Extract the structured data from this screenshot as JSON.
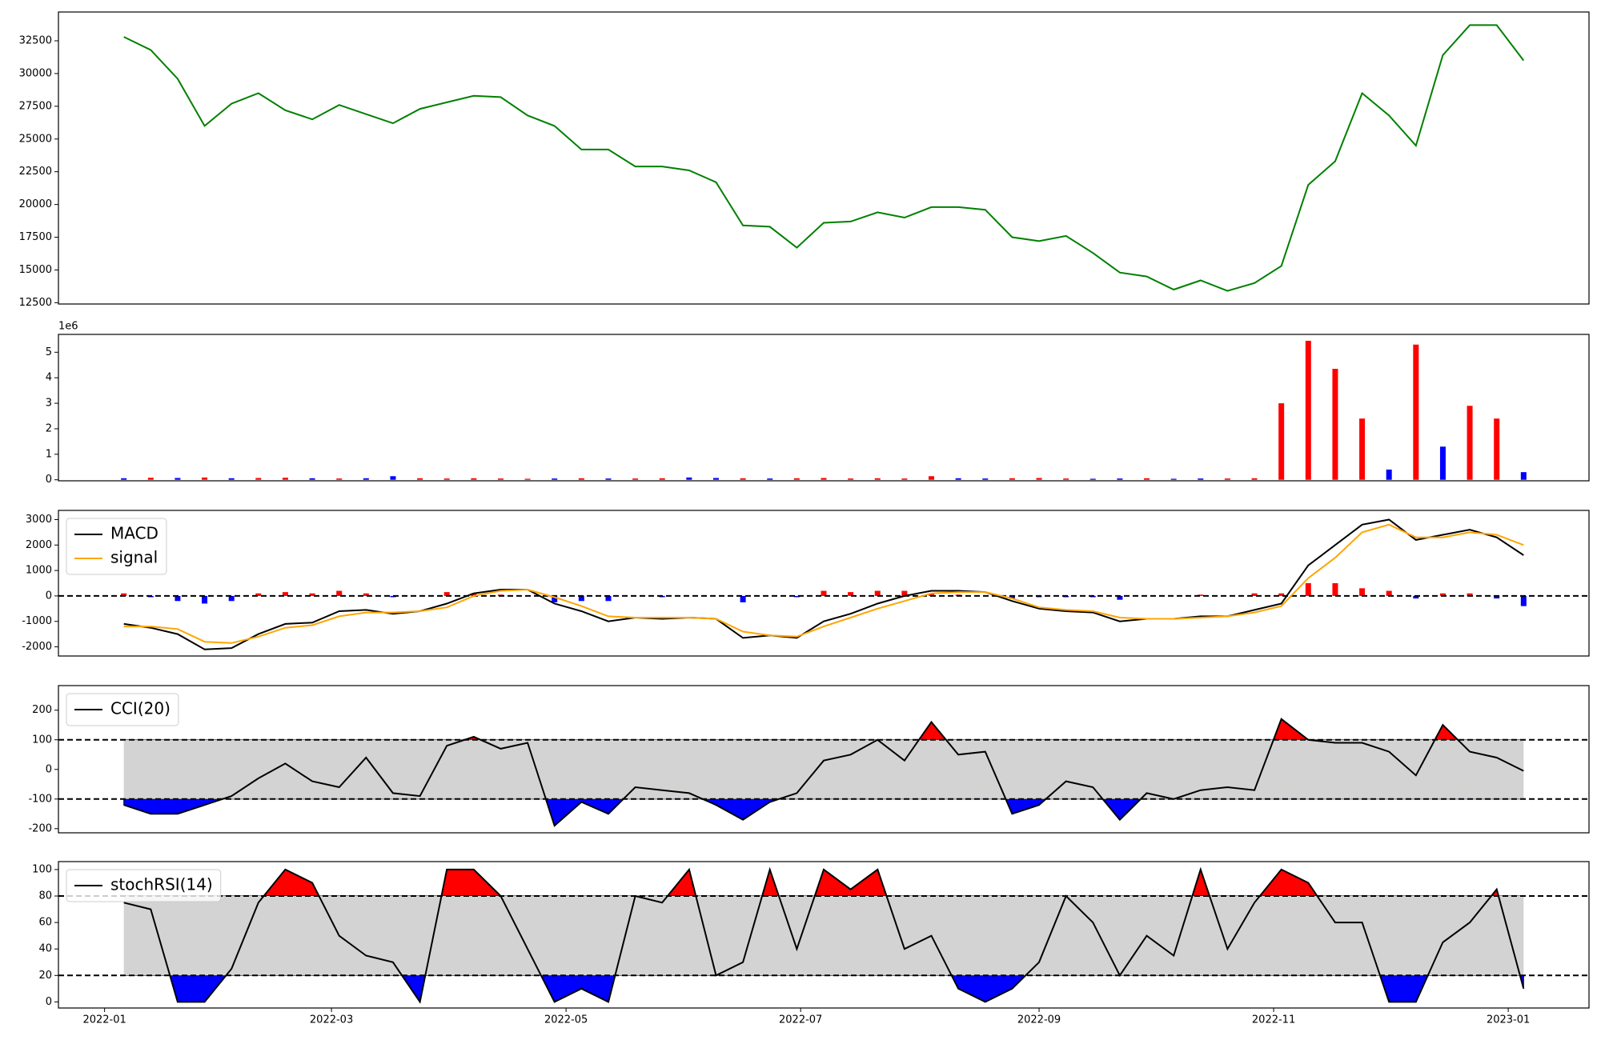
{
  "chart_data": [
    {
      "type": "line",
      "color": "green",
      "x": [
        "2022-01-06",
        "2022-01-13",
        "2022-01-20",
        "2022-01-27",
        "2022-02-03",
        "2022-02-10",
        "2022-02-17",
        "2022-02-24",
        "2022-03-03",
        "2022-03-10",
        "2022-03-17",
        "2022-03-24",
        "2022-03-31",
        "2022-04-07",
        "2022-04-14",
        "2022-04-21",
        "2022-04-28",
        "2022-05-05",
        "2022-05-12",
        "2022-05-19",
        "2022-05-26",
        "2022-06-02",
        "2022-06-09",
        "2022-06-16",
        "2022-06-23",
        "2022-06-30",
        "2022-07-07",
        "2022-07-14",
        "2022-07-21",
        "2022-07-28",
        "2022-08-04",
        "2022-08-11",
        "2022-08-18",
        "2022-08-25",
        "2022-09-01",
        "2022-09-08",
        "2022-09-15",
        "2022-09-22",
        "2022-09-29",
        "2022-10-06",
        "2022-10-13",
        "2022-10-20",
        "2022-10-27",
        "2022-11-03",
        "2022-11-10",
        "2022-11-17",
        "2022-11-24",
        "2022-12-01",
        "2022-12-08",
        "2022-12-15",
        "2022-12-22",
        "2022-12-29",
        "2023-01-05"
      ],
      "values": [
        32800,
        31800,
        29600,
        26000,
        27700,
        28500,
        27200,
        26500,
        27600,
        26900,
        26200,
        27300,
        27800,
        28300,
        28200,
        26800,
        26000,
        24200,
        24200,
        22900,
        22900,
        22600,
        21700,
        18400,
        18300,
        16700,
        18600,
        18700,
        19400,
        19000,
        19800,
        19800,
        19600,
        17500,
        17200,
        17600,
        16300,
        14800,
        14500,
        13500,
        14200,
        13400,
        14000,
        15300,
        21500,
        23300,
        28500,
        26800,
        24500,
        31400,
        33700,
        33700,
        31000
      ],
      "xlim": [
        "2021-12-20",
        "2023-01-22"
      ],
      "ylim": [
        12400,
        34700
      ],
      "yticks": [
        12500,
        15000,
        17500,
        20000,
        22500,
        25000,
        27500,
        30000,
        32500
      ]
    },
    {
      "type": "bar",
      "y_offset_label": "1e6",
      "x": [
        "2022-01-06",
        "2022-01-13",
        "2022-01-20",
        "2022-01-27",
        "2022-02-03",
        "2022-02-10",
        "2022-02-17",
        "2022-02-24",
        "2022-03-03",
        "2022-03-10",
        "2022-03-17",
        "2022-03-24",
        "2022-03-31",
        "2022-04-07",
        "2022-04-14",
        "2022-04-21",
        "2022-04-28",
        "2022-05-05",
        "2022-05-12",
        "2022-05-19",
        "2022-05-26",
        "2022-06-02",
        "2022-06-09",
        "2022-06-16",
        "2022-06-23",
        "2022-06-30",
        "2022-07-07",
        "2022-07-14",
        "2022-07-21",
        "2022-07-28",
        "2022-08-04",
        "2022-08-11",
        "2022-08-18",
        "2022-08-25",
        "2022-09-01",
        "2022-09-08",
        "2022-09-15",
        "2022-09-22",
        "2022-09-29",
        "2022-10-06",
        "2022-10-13",
        "2022-10-20",
        "2022-10-27",
        "2022-11-03",
        "2022-11-10",
        "2022-11-17",
        "2022-11-24",
        "2022-12-01",
        "2022-12-08",
        "2022-12-15",
        "2022-12-22",
        "2022-12-29",
        "2023-01-05"
      ],
      "values": [
        60000,
        80000,
        70000,
        90000,
        60000,
        70000,
        80000,
        60000,
        50000,
        60000,
        140000,
        60000,
        50000,
        60000,
        50000,
        40000,
        50000,
        60000,
        50000,
        50000,
        60000,
        90000,
        70000,
        60000,
        50000,
        60000,
        70000,
        50000,
        60000,
        50000,
        140000,
        60000,
        50000,
        60000,
        70000,
        50000,
        40000,
        50000,
        60000,
        40000,
        50000,
        50000,
        60000,
        3000000,
        5450000,
        4350000,
        2400000,
        400000,
        5300000,
        1300000,
        2900000,
        2400000,
        300000
      ],
      "colors": [
        "blue",
        "red",
        "blue",
        "red",
        "blue",
        "red",
        "red",
        "blue",
        "red",
        "blue",
        "blue",
        "red",
        "red",
        "red",
        "red",
        "red",
        "blue",
        "red",
        "blue",
        "red",
        "red",
        "blue",
        "blue",
        "red",
        "blue",
        "red",
        "red",
        "red",
        "red",
        "red",
        "red",
        "blue",
        "blue",
        "red",
        "red",
        "red",
        "blue",
        "blue",
        "red",
        "blue",
        "blue",
        "red",
        "red",
        "red",
        "red",
        "red",
        "red",
        "blue",
        "red",
        "blue",
        "red",
        "red",
        "blue"
      ],
      "xlim": [
        "2021-12-20",
        "2023-01-22"
      ],
      "ylim": [
        -40000,
        5700000
      ],
      "yticks": [
        0,
        {
          "value": 1000000,
          "label": "1"
        },
        {
          "value": 2000000,
          "label": "2"
        },
        {
          "value": 3000000,
          "label": "3"
        },
        {
          "value": 4000000,
          "label": "4"
        },
        {
          "value": 5000000,
          "label": "5"
        }
      ]
    },
    {
      "type": "macd",
      "legend": "upper left",
      "hline": 0,
      "x": [
        "2022-01-06",
        "2022-01-13",
        "2022-01-20",
        "2022-01-27",
        "2022-02-03",
        "2022-02-10",
        "2022-02-17",
        "2022-02-24",
        "2022-03-03",
        "2022-03-10",
        "2022-03-17",
        "2022-03-24",
        "2022-03-31",
        "2022-04-07",
        "2022-04-14",
        "2022-04-21",
        "2022-04-28",
        "2022-05-05",
        "2022-05-12",
        "2022-05-19",
        "2022-05-26",
        "2022-06-02",
        "2022-06-09",
        "2022-06-16",
        "2022-06-23",
        "2022-06-30",
        "2022-07-07",
        "2022-07-14",
        "2022-07-21",
        "2022-07-28",
        "2022-08-04",
        "2022-08-11",
        "2022-08-18",
        "2022-08-25",
        "2022-09-01",
        "2022-09-08",
        "2022-09-15",
        "2022-09-22",
        "2022-09-29",
        "2022-10-06",
        "2022-10-13",
        "2022-10-20",
        "2022-10-27",
        "2022-11-03",
        "2022-11-10",
        "2022-11-17",
        "2022-11-24",
        "2022-12-01",
        "2022-12-08",
        "2022-12-15",
        "2022-12-22",
        "2022-12-29",
        "2023-01-05"
      ],
      "series": [
        {
          "name": "MACD",
          "color": "black",
          "values": [
            -1100,
            -1250,
            -1500,
            -2100,
            -2050,
            -1500,
            -1100,
            -1050,
            -600,
            -550,
            -700,
            -600,
            -300,
            100,
            250,
            250,
            -300,
            -600,
            -1000,
            -850,
            -900,
            -850,
            -900,
            -1650,
            -1550,
            -1650,
            -1000,
            -700,
            -300,
            0,
            200,
            200,
            150,
            -200,
            -500,
            -600,
            -650,
            -1000,
            -900,
            -900,
            -800,
            -800,
            -550,
            -300,
            1200,
            2000,
            2800,
            3000,
            2200,
            2400,
            2600,
            2300,
            1600
          ]
        },
        {
          "name": "signal",
          "color": "orange",
          "values": [
            -1200,
            -1200,
            -1300,
            -1800,
            -1850,
            -1600,
            -1250,
            -1150,
            -800,
            -650,
            -650,
            -600,
            -450,
            0,
            200,
            250,
            -50,
            -400,
            -800,
            -850,
            -850,
            -850,
            -900,
            -1400,
            -1550,
            -1600,
            -1200,
            -850,
            -500,
            -200,
            100,
            150,
            150,
            -100,
            -450,
            -550,
            -600,
            -850,
            -900,
            -900,
            -850,
            -800,
            -650,
            -400,
            700,
            1500,
            2500,
            2800,
            2300,
            2300,
            2500,
            2400,
            2000
          ]
        }
      ],
      "histogram": {
        "up_color": "red",
        "down_color": "blue",
        "values": [
          100,
          -50,
          -200,
          -300,
          -200,
          100,
          150,
          100,
          200,
          100,
          -50,
          0,
          150,
          100,
          50,
          0,
          -250,
          -200,
          -200,
          0,
          -50,
          0,
          0,
          -250,
          0,
          -50,
          200,
          150,
          200,
          200,
          100,
          50,
          0,
          -100,
          -50,
          -50,
          -50,
          -150,
          0,
          0,
          50,
          0,
          100,
          100,
          500,
          500,
          300,
          200,
          -100,
          100,
          100,
          -100,
          -400
        ]
      },
      "xlim": [
        "2021-12-20",
        "2023-01-22"
      ],
      "ylim": [
        -2360,
        3360
      ],
      "yticks": [
        -2000,
        -1000,
        0,
        1000,
        2000,
        3000
      ]
    },
    {
      "type": "oscillator",
      "legend": "upper left",
      "bands": {
        "upper": 100,
        "lower": -100,
        "upper_color": "red",
        "lower_color": "blue",
        "middle_color": "lightgray"
      },
      "x": [
        "2022-01-06",
        "2022-01-13",
        "2022-01-20",
        "2022-01-27",
        "2022-02-03",
        "2022-02-10",
        "2022-02-17",
        "2022-02-24",
        "2022-03-03",
        "2022-03-10",
        "2022-03-17",
        "2022-03-24",
        "2022-03-31",
        "2022-04-07",
        "2022-04-14",
        "2022-04-21",
        "2022-04-28",
        "2022-05-05",
        "2022-05-12",
        "2022-05-19",
        "2022-05-26",
        "2022-06-02",
        "2022-06-09",
        "2022-06-16",
        "2022-06-23",
        "2022-06-30",
        "2022-07-07",
        "2022-07-14",
        "2022-07-21",
        "2022-07-28",
        "2022-08-04",
        "2022-08-11",
        "2022-08-18",
        "2022-08-25",
        "2022-09-01",
        "2022-09-08",
        "2022-09-15",
        "2022-09-22",
        "2022-09-29",
        "2022-10-06",
        "2022-10-13",
        "2022-10-20",
        "2022-10-27",
        "2022-11-03",
        "2022-11-10",
        "2022-11-17",
        "2022-11-24",
        "2022-12-01",
        "2022-12-08",
        "2022-12-15",
        "2022-12-22",
        "2022-12-29",
        "2023-01-05"
      ],
      "series": [
        {
          "name": "CCI(20)",
          "color": "black",
          "values": [
            -120,
            -150,
            -150,
            -120,
            -90,
            -30,
            20,
            -40,
            -60,
            40,
            -80,
            -90,
            80,
            110,
            70,
            90,
            -190,
            -110,
            -150,
            -60,
            -70,
            -80,
            -120,
            -170,
            -110,
            -80,
            30,
            50,
            100,
            30,
            160,
            50,
            60,
            -150,
            -120,
            -40,
            -60,
            -170,
            -80,
            -100,
            -70,
            -60,
            -70,
            170,
            100,
            90,
            90,
            60,
            -20,
            150,
            60,
            40,
            -5
          ]
        }
      ],
      "xlim": [
        "2021-12-20",
        "2023-01-22"
      ],
      "ylim": [
        -214,
        283
      ],
      "yticks": [
        -200,
        -100,
        0,
        100,
        200
      ]
    },
    {
      "type": "oscillator",
      "legend": "upper left",
      "bands": {
        "upper": 80,
        "lower": 20,
        "upper_color": "red",
        "lower_color": "blue",
        "middle_color": "lightgray"
      },
      "x": [
        "2022-01-06",
        "2022-01-13",
        "2022-01-20",
        "2022-01-27",
        "2022-02-03",
        "2022-02-10",
        "2022-02-17",
        "2022-02-24",
        "2022-03-03",
        "2022-03-10",
        "2022-03-17",
        "2022-03-24",
        "2022-03-31",
        "2022-04-07",
        "2022-04-14",
        "2022-04-21",
        "2022-04-28",
        "2022-05-05",
        "2022-05-12",
        "2022-05-19",
        "2022-05-26",
        "2022-06-02",
        "2022-06-09",
        "2022-06-16",
        "2022-06-23",
        "2022-06-30",
        "2022-07-07",
        "2022-07-14",
        "2022-07-21",
        "2022-07-28",
        "2022-08-04",
        "2022-08-11",
        "2022-08-18",
        "2022-08-25",
        "2022-09-01",
        "2022-09-08",
        "2022-09-15",
        "2022-09-22",
        "2022-09-29",
        "2022-10-06",
        "2022-10-13",
        "2022-10-20",
        "2022-10-27",
        "2022-11-03",
        "2022-11-10",
        "2022-11-17",
        "2022-11-24",
        "2022-12-01",
        "2022-12-08",
        "2022-12-15",
        "2022-12-22",
        "2022-12-29",
        "2023-01-05"
      ],
      "series": [
        {
          "name": "stochRSI(14)",
          "color": "black",
          "values": [
            75,
            70,
            0,
            0,
            25,
            75,
            100,
            90,
            50,
            35,
            30,
            0,
            100,
            100,
            80,
            40,
            0,
            10,
            0,
            80,
            75,
            100,
            20,
            30,
            100,
            40,
            100,
            85,
            100,
            40,
            50,
            10,
            0,
            10,
            30,
            80,
            60,
            20,
            50,
            35,
            100,
            40,
            75,
            100,
            90,
            60,
            60,
            0,
            0,
            45,
            60,
            85,
            10
          ]
        }
      ],
      "xlim": [
        "2021-12-20",
        "2023-01-22"
      ],
      "ylim": [
        -4.6,
        106
      ],
      "yticks": [
        0,
        20,
        40,
        60,
        80,
        100
      ],
      "xticks": [
        {
          "value": "2022-01-01",
          "label": "2022-01"
        },
        {
          "value": "2022-03-01",
          "label": "2022-03"
        },
        {
          "value": "2022-05-01",
          "label": "2022-05"
        },
        {
          "value": "2022-07-01",
          "label": "2022-07"
        },
        {
          "value": "2022-09-01",
          "label": "2022-09"
        },
        {
          "value": "2022-11-01",
          "label": "2022-11"
        },
        {
          "value": "2023-01-01",
          "label": "2023-01"
        }
      ]
    }
  ]
}
